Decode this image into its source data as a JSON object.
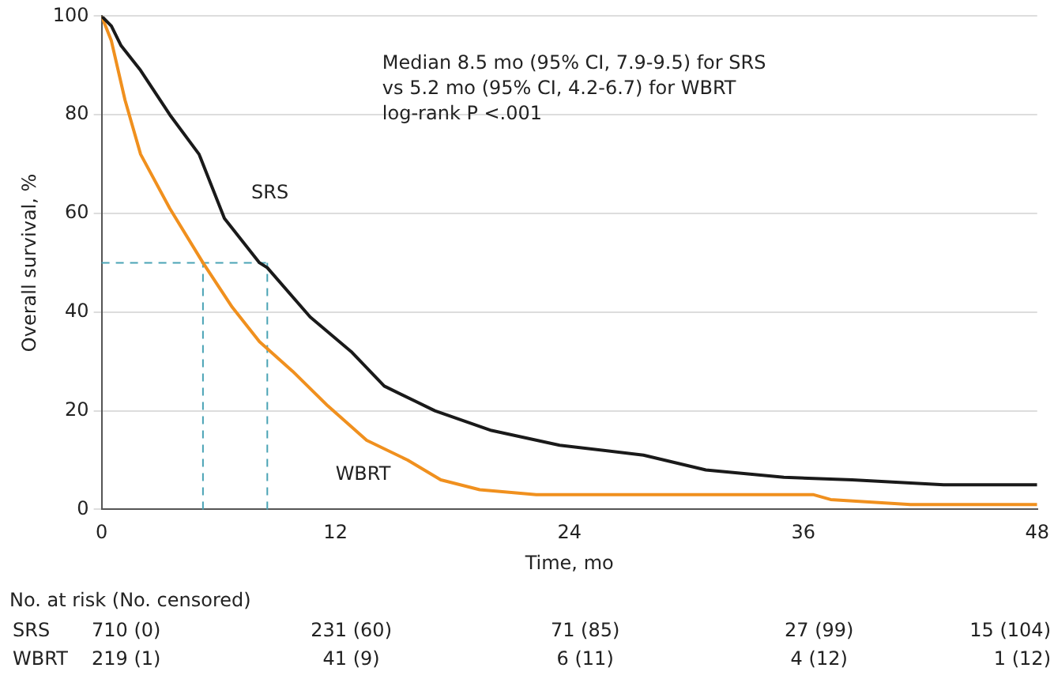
{
  "chart_data": {
    "type": "line",
    "xlabel": "Time, mo",
    "ylabel": "Overall survival, %",
    "xlim": [
      0,
      48
    ],
    "xticks": [
      0,
      12,
      24,
      36,
      48
    ],
    "ylim": [
      0,
      100
    ],
    "yticks": [
      0,
      20,
      40,
      60,
      80,
      100
    ],
    "grid": "y",
    "legend": false,
    "marker": "none",
    "line_style": "solid",
    "series": [
      {
        "name": "SRS",
        "color": "#1a1a1a",
        "x": [
          0,
          0.5,
          1,
          2,
          3.5,
          5,
          6.3,
          8.1,
          8.5,
          10.7,
          12.8,
          14.5,
          17.1,
          20,
          23.5,
          27.8,
          31,
          35,
          38.5,
          43.2,
          45.5,
          48
        ],
        "values": [
          100,
          98,
          94,
          89,
          80,
          72,
          59,
          50,
          49,
          39,
          32,
          25,
          20,
          16,
          13,
          11,
          8,
          6.5,
          6,
          5,
          5,
          5
        ]
      },
      {
        "name": "WBRT",
        "color": "#f0901e",
        "x": [
          0,
          0.5,
          1.2,
          2,
          3.5,
          5.2,
          6.7,
          8.1,
          9.8,
          11.6,
          13.6,
          15.7,
          17.4,
          19.4,
          22.3,
          36.5,
          37.4,
          41.5,
          48
        ],
        "values": [
          100,
          95,
          83,
          72,
          61,
          50,
          41,
          34,
          28,
          21,
          14,
          10,
          6,
          4,
          3,
          3,
          2,
          1,
          1
        ]
      }
    ],
    "ref_lines": [
      {
        "axis": "y",
        "value": 50,
        "color": "#4aa3b5",
        "line_style": "dashed"
      },
      {
        "axis": "x",
        "value": 5.2,
        "color": "#4aa3b5",
        "line_style": "dashed"
      },
      {
        "axis": "x",
        "value": 8.5,
        "color": "#4aa3b5",
        "line_style": "dashed"
      }
    ],
    "annotations": [
      "Median 8.5 mo (95% CI, 7.9-9.5) for SRS",
      "vs 5.2 mo (95% CI, 4.2-6.7) for WBRT",
      "log-rank P <.001",
      "No. at risk (No. censored)",
      "710 (0)",
      "231 (60)",
      "71 (85)",
      "27 (99)",
      "15 (104)",
      "219 (1)",
      "41 (9)",
      "6 (11)",
      "4 (12)",
      "1 (12)"
    ]
  }
}
